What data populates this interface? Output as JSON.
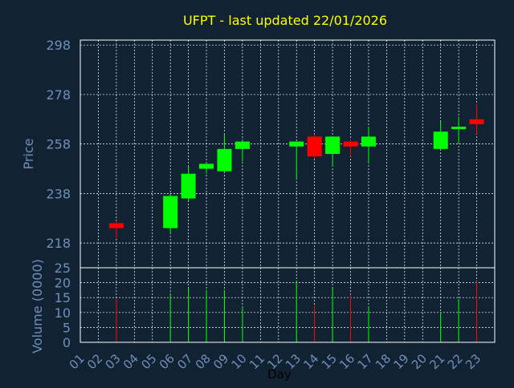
{
  "colors": {
    "background": "#112233",
    "title": "#ffff00",
    "axis_text": "#6f8fb8",
    "frame": "#ffffff",
    "grid": "#ffffff",
    "up": "#00ff00",
    "down": "#ff0000"
  },
  "chart_data": [
    {
      "type": "candlestick",
      "title": "UFPT - last updated 22/01/2026",
      "ylabel": "Price",
      "ylim": [
        208,
        300
      ],
      "yticks": [
        298,
        278,
        258,
        238,
        218
      ],
      "grid": true,
      "series": [
        {
          "day": "02",
          "open": 226,
          "high": 227,
          "low": 220,
          "close": 224
        },
        {
          "day": "05",
          "open": 224,
          "high": 238,
          "low": 222,
          "close": 237
        },
        {
          "day": "06",
          "open": 236,
          "high": 249,
          "low": 235,
          "close": 246
        },
        {
          "day": "07",
          "open": 248,
          "high": 250,
          "low": 246,
          "close": 250
        },
        {
          "day": "08",
          "open": 247,
          "high": 262,
          "low": 247,
          "close": 256
        },
        {
          "day": "09",
          "open": 256,
          "high": 260,
          "low": 251,
          "close": 259
        },
        {
          "day": "12",
          "open": 257,
          "high": 259,
          "low": 244,
          "close": 259
        },
        {
          "day": "13",
          "open": 261,
          "high": 262,
          "low": 252,
          "close": 253
        },
        {
          "day": "14",
          "open": 254,
          "high": 261,
          "low": 249,
          "close": 261
        },
        {
          "day": "15",
          "open": 259,
          "high": 260,
          "low": 253,
          "close": 257
        },
        {
          "day": "16",
          "open": 257,
          "high": 265,
          "low": 250,
          "close": 261
        },
        {
          "day": "20",
          "open": 256,
          "high": 267,
          "low": 256,
          "close": 263
        },
        {
          "day": "21",
          "open": 264,
          "high": 269,
          "low": 258,
          "close": 265
        },
        {
          "day": "22",
          "open": 268,
          "high": 274,
          "low": 262,
          "close": 266
        }
      ]
    },
    {
      "type": "bar",
      "ylabel": "Volume (0000)",
      "xlabel": "Day",
      "ylim": [
        0,
        25
      ],
      "yticks": [
        0,
        5,
        10,
        15,
        20,
        25
      ],
      "categories": [
        "01",
        "02",
        "03",
        "04",
        "05",
        "06",
        "07",
        "08",
        "09",
        "10",
        "11",
        "12",
        "13",
        "14",
        "15",
        "16",
        "17",
        "18",
        "19",
        "20",
        "21",
        "22",
        "23"
      ],
      "grid": true,
      "bars": [
        {
          "day": "02",
          "value": 14.5,
          "direction": "down"
        },
        {
          "day": "05",
          "value": 16.5,
          "direction": "up"
        },
        {
          "day": "06",
          "value": 18,
          "direction": "up"
        },
        {
          "day": "07",
          "value": 17.5,
          "direction": "up"
        },
        {
          "day": "08",
          "value": 17.5,
          "direction": "up"
        },
        {
          "day": "09",
          "value": 11.5,
          "direction": "up"
        },
        {
          "day": "12",
          "value": 20.5,
          "direction": "up"
        },
        {
          "day": "13",
          "value": 12.5,
          "direction": "down"
        },
        {
          "day": "14",
          "value": 18,
          "direction": "up"
        },
        {
          "day": "15",
          "value": 16,
          "direction": "down"
        },
        {
          "day": "16",
          "value": 12,
          "direction": "up"
        },
        {
          "day": "20",
          "value": 10,
          "direction": "up"
        },
        {
          "day": "21",
          "value": 14.5,
          "direction": "up"
        },
        {
          "day": "22",
          "value": 20.5,
          "direction": "down"
        }
      ]
    }
  ]
}
